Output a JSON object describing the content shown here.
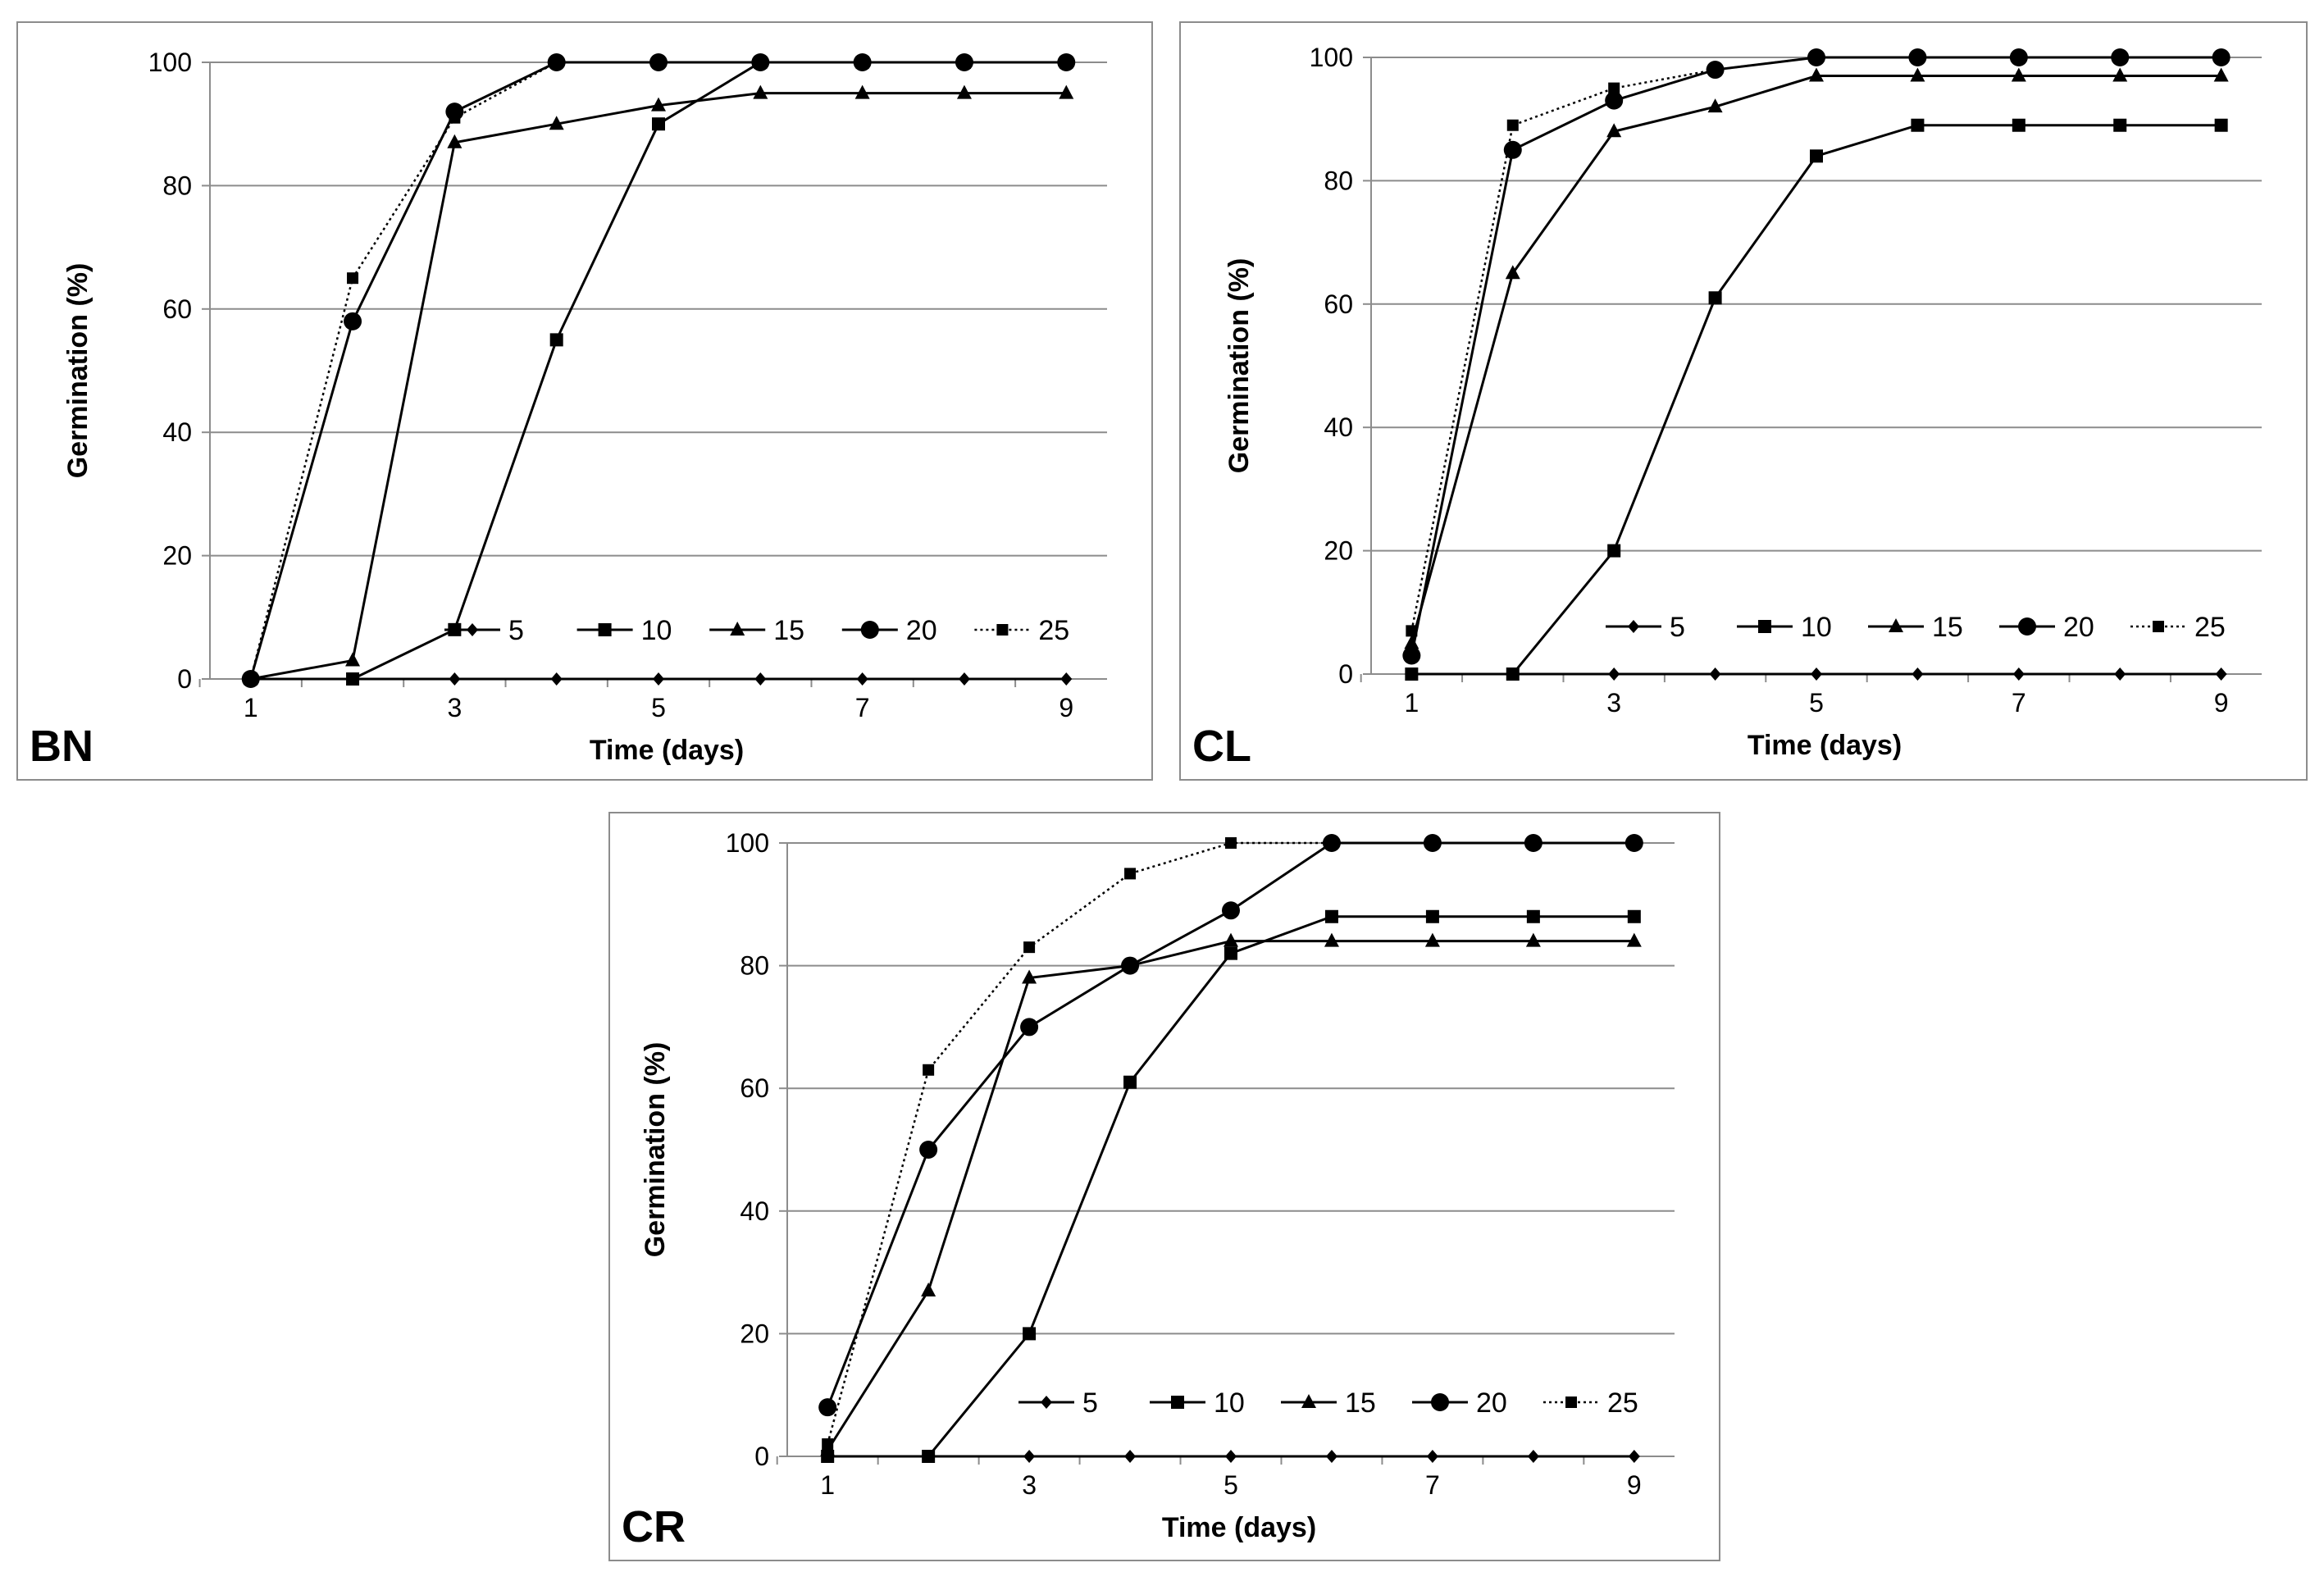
{
  "chart_data": [
    {
      "type": "line",
      "panel_label": "BN",
      "xlabel": "Time (days)",
      "ylabel": "Germination (%)",
      "xlim": [
        1,
        9
      ],
      "ylim": [
        0,
        100
      ],
      "x_ticks": [
        "1",
        "3",
        "5",
        "7",
        "9"
      ],
      "y_ticks": [
        "0",
        "20",
        "40",
        "60",
        "80",
        "100"
      ],
      "grid": "horizontal",
      "legend_position": "bottom-right",
      "x": [
        1,
        2,
        3,
        4,
        5,
        6,
        7,
        8,
        9
      ],
      "series": [
        {
          "name": "5",
          "marker": "diamond",
          "dash": "solid",
          "values": [
            0,
            0,
            0,
            0,
            0,
            0,
            0,
            0,
            0
          ]
        },
        {
          "name": "10",
          "marker": "square",
          "dash": "solid",
          "values": [
            0,
            0,
            8,
            55,
            90,
            100,
            100,
            100,
            100
          ]
        },
        {
          "name": "15",
          "marker": "triangle",
          "dash": "solid",
          "values": [
            0,
            3,
            87,
            90,
            93,
            95,
            95,
            95,
            95
          ]
        },
        {
          "name": "20",
          "marker": "circle",
          "dash": "solid",
          "values": [
            0,
            58,
            92,
            100,
            100,
            100,
            100,
            100,
            100
          ]
        },
        {
          "name": "25",
          "marker": "square-small",
          "dash": "dotted",
          "values": [
            0,
            65,
            91,
            100,
            100,
            100,
            100,
            100,
            100
          ]
        }
      ]
    },
    {
      "type": "line",
      "panel_label": "CL",
      "xlabel": "Time (days)",
      "ylabel": "Germination (%)",
      "xlim": [
        1,
        9
      ],
      "ylim": [
        0,
        100
      ],
      "x_ticks": [
        "1",
        "3",
        "5",
        "7",
        "9"
      ],
      "y_ticks": [
        "0",
        "20",
        "40",
        "60",
        "80",
        "100"
      ],
      "grid": "horizontal",
      "legend_position": "bottom-right",
      "x": [
        1,
        2,
        3,
        4,
        5,
        6,
        7,
        8,
        9
      ],
      "series": [
        {
          "name": "5",
          "marker": "diamond",
          "dash": "solid",
          "values": [
            0,
            0,
            0,
            0,
            0,
            0,
            0,
            0,
            0
          ]
        },
        {
          "name": "10",
          "marker": "square",
          "dash": "solid",
          "values": [
            0,
            0,
            20,
            61,
            84,
            89,
            89,
            89,
            89
          ]
        },
        {
          "name": "15",
          "marker": "triangle",
          "dash": "solid",
          "values": [
            5,
            65,
            88,
            92,
            97,
            97,
            97,
            97,
            97
          ]
        },
        {
          "name": "20",
          "marker": "circle",
          "dash": "solid",
          "values": [
            3,
            85,
            93,
            98,
            100,
            100,
            100,
            100,
            100
          ]
        },
        {
          "name": "25",
          "marker": "square-small",
          "dash": "dotted",
          "values": [
            7,
            89,
            95,
            98,
            100,
            100,
            100,
            100,
            100
          ]
        }
      ]
    },
    {
      "type": "line",
      "panel_label": "CR",
      "xlabel": "Time (days)",
      "ylabel": "Germination (%)",
      "xlim": [
        1,
        9
      ],
      "ylim": [
        0,
        100
      ],
      "x_ticks": [
        "1",
        "3",
        "5",
        "7",
        "9"
      ],
      "y_ticks": [
        "0",
        "20",
        "40",
        "60",
        "80",
        "100"
      ],
      "grid": "horizontal",
      "legend_position": "bottom-right",
      "x": [
        1,
        2,
        3,
        4,
        5,
        6,
        7,
        8,
        9
      ],
      "series": [
        {
          "name": "5",
          "marker": "diamond",
          "dash": "solid",
          "values": [
            0,
            0,
            0,
            0,
            0,
            0,
            0,
            0,
            0
          ]
        },
        {
          "name": "10",
          "marker": "square",
          "dash": "solid",
          "values": [
            0,
            0,
            20,
            61,
            82,
            88,
            88,
            88,
            88
          ]
        },
        {
          "name": "15",
          "marker": "triangle",
          "dash": "solid",
          "values": [
            1,
            27,
            78,
            80,
            84,
            84,
            84,
            84,
            84
          ]
        },
        {
          "name": "20",
          "marker": "circle",
          "dash": "solid",
          "values": [
            8,
            50,
            70,
            80,
            89,
            100,
            100,
            100,
            100
          ]
        },
        {
          "name": "25",
          "marker": "square-small",
          "dash": "dotted",
          "values": [
            2,
            63,
            83,
            95,
            100,
            100,
            100,
            100,
            100
          ]
        }
      ]
    }
  ]
}
